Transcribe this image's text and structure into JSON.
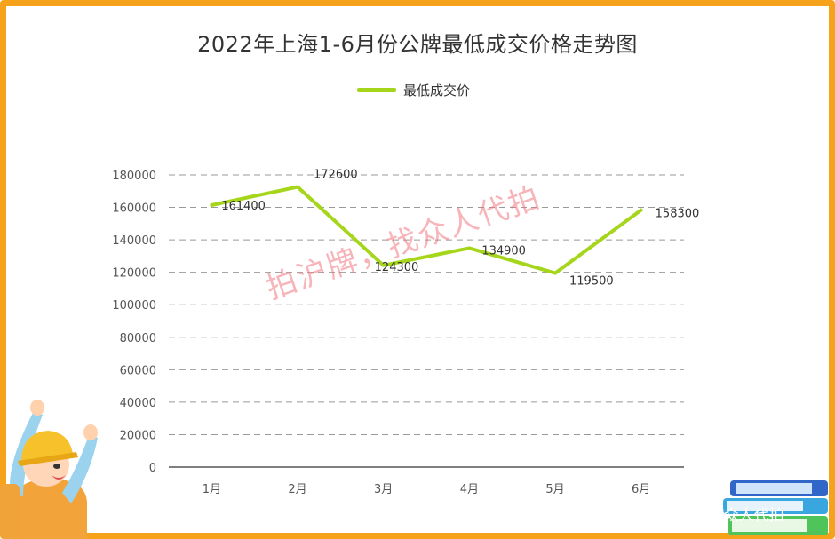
{
  "title": "2022年上海1-6月份公牌最低成交价格走势图",
  "legend": {
    "label": "最低成交价",
    "color": "#a6d61b"
  },
  "watermark": "拍沪牌，找众人代拍",
  "corner_text": "号/众人代拍",
  "colors": {
    "frame": "#f7a21b",
    "line": "#a6d61b",
    "grid": "#999999"
  },
  "chart_data": {
    "type": "line",
    "title": "2022年上海1-6月份公牌最低成交价格走势图",
    "categories": [
      "1月",
      "2月",
      "3月",
      "4月",
      "5月",
      "6月"
    ],
    "series": [
      {
        "name": "最低成交价",
        "values": [
          161400,
          172600,
          124300,
          134900,
          119500,
          158300
        ]
      }
    ],
    "ylim": [
      0,
      180000
    ],
    "yticks": [
      0,
      20000,
      40000,
      60000,
      80000,
      100000,
      120000,
      140000,
      160000,
      180000
    ],
    "grid": true,
    "legend_position": "top"
  }
}
